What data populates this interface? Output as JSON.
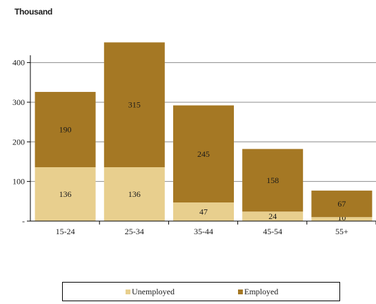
{
  "chart_data": {
    "type": "bar",
    "stacked": true,
    "unit_label": "Thousand",
    "categories": [
      "15-24",
      "25-34",
      "35-44",
      "45-54",
      "55+"
    ],
    "series": [
      {
        "name": "Unemployed",
        "values": [
          136,
          136,
          47,
          24,
          10
        ],
        "color": "#e8cf8e"
      },
      {
        "name": "Employed",
        "values": [
          190,
          315,
          245,
          158,
          67
        ],
        "color": "#a57824"
      }
    ],
    "ylim": [
      0,
      450
    ],
    "y_ticks": [
      0,
      100,
      200,
      300,
      400
    ],
    "y_tick_labels": [
      "-",
      "100",
      "200",
      "300",
      "400"
    ],
    "grid": true,
    "legend": "bottom"
  }
}
